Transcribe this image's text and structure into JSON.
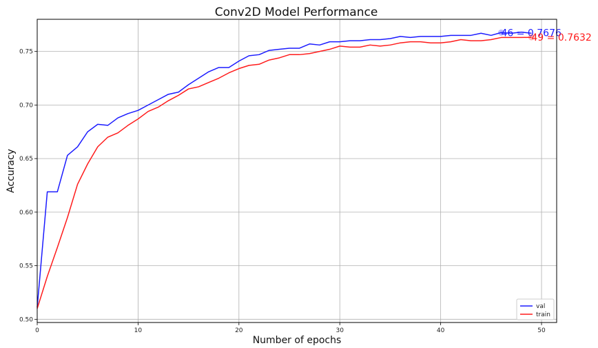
{
  "chart_data": {
    "type": "line",
    "title": "Conv2D Model Performance",
    "xlabel": "Number of epochs",
    "ylabel": "Accuracy",
    "xlim": [
      0,
      51.5
    ],
    "ylim": [
      0.497,
      0.78
    ],
    "grid": true,
    "legend_position": "lower-right",
    "x_ticks": [
      0,
      10,
      20,
      30,
      40,
      50
    ],
    "y_ticks": [
      0.5,
      0.55,
      0.6,
      0.65,
      0.7,
      0.75
    ],
    "x_tick_labels": [
      "0",
      "10",
      "20",
      "30",
      "40",
      "50"
    ],
    "y_tick_labels": [
      "0.50",
      "0.55",
      "0.60",
      "0.65",
      "0.70",
      "0.75"
    ],
    "x": [
      0,
      1,
      2,
      3,
      4,
      5,
      6,
      7,
      8,
      9,
      10,
      11,
      12,
      13,
      14,
      15,
      16,
      17,
      18,
      19,
      20,
      21,
      22,
      23,
      24,
      25,
      26,
      27,
      28,
      29,
      30,
      31,
      32,
      33,
      34,
      35,
      36,
      37,
      38,
      39,
      40,
      41,
      42,
      43,
      44,
      45,
      46,
      47,
      48,
      49
    ],
    "series": [
      {
        "name": "val",
        "color": "#1a1aff",
        "values": [
          0.511,
          0.619,
          0.619,
          0.653,
          0.661,
          0.675,
          0.682,
          0.681,
          0.688,
          0.692,
          0.695,
          0.7,
          0.705,
          0.71,
          0.712,
          0.719,
          0.725,
          0.731,
          0.735,
          0.735,
          0.741,
          0.746,
          0.747,
          0.751,
          0.752,
          0.753,
          0.753,
          0.757,
          0.756,
          0.759,
          0.759,
          0.76,
          0.76,
          0.761,
          0.761,
          0.762,
          0.764,
          0.763,
          0.764,
          0.764,
          0.764,
          0.765,
          0.765,
          0.765,
          0.767,
          0.765,
          0.7676,
          0.767,
          0.768,
          0.767
        ]
      },
      {
        "name": "train",
        "color": "#ff1a1a",
        "values": [
          0.51,
          0.54,
          0.567,
          0.595,
          0.626,
          0.645,
          0.661,
          0.67,
          0.674,
          0.681,
          0.687,
          0.694,
          0.698,
          0.704,
          0.709,
          0.715,
          0.717,
          0.721,
          0.725,
          0.73,
          0.734,
          0.737,
          0.738,
          0.742,
          0.744,
          0.747,
          0.747,
          0.748,
          0.75,
          0.752,
          0.755,
          0.754,
          0.754,
          0.756,
          0.755,
          0.756,
          0.758,
          0.759,
          0.759,
          0.758,
          0.758,
          0.759,
          0.761,
          0.76,
          0.76,
          0.761,
          0.763,
          0.763,
          0.763,
          0.7632
        ]
      }
    ],
    "annotations": [
      {
        "series": "val",
        "x": 46,
        "y": 0.7676,
        "text": "46 = 0.7676",
        "color": "#1a1aff"
      },
      {
        "series": "train",
        "x": 49,
        "y": 0.7632,
        "text": "49 = 0.7632",
        "color": "#ff1a1a"
      }
    ]
  }
}
